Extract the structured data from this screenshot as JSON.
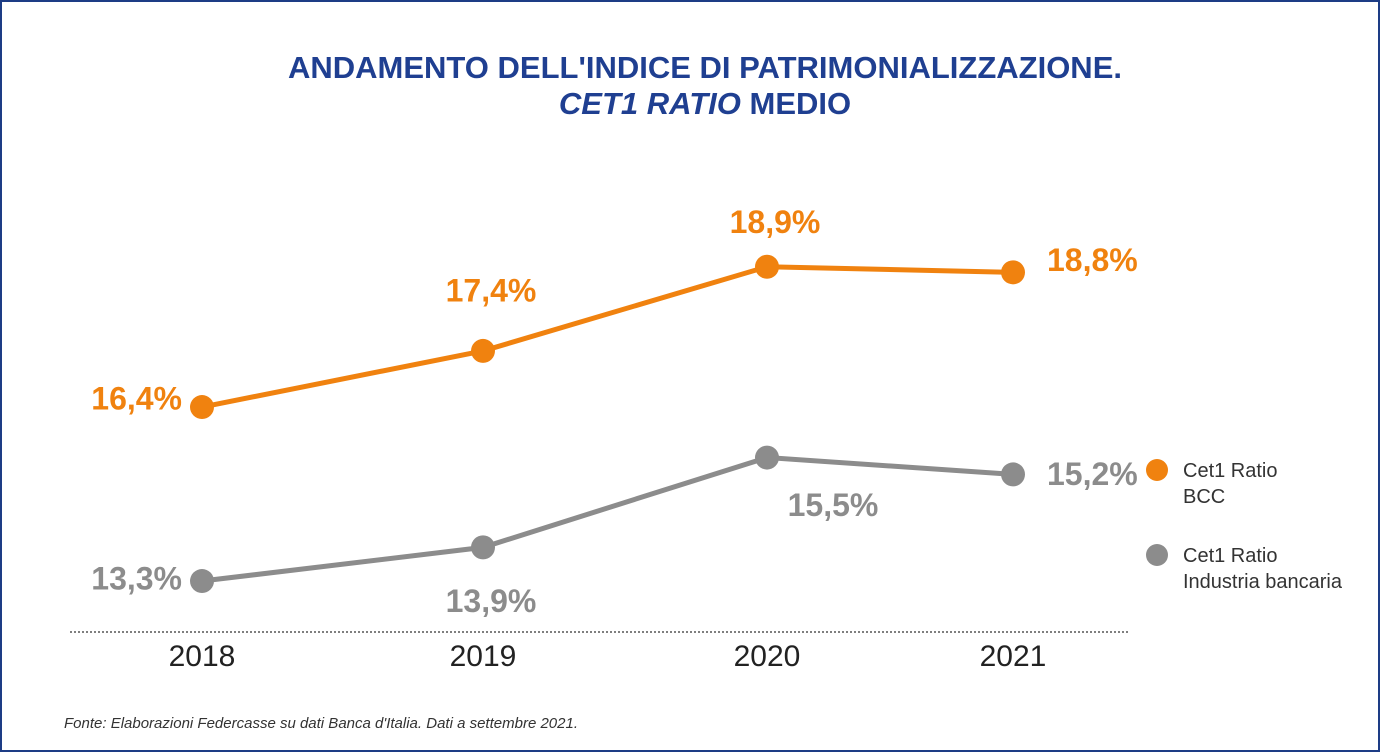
{
  "chart_data": {
    "type": "line",
    "title": [
      "ANDAMENTO DELL'INDICE DI PATRIMONIALIZZAZIONE.",
      "CET1 RATIO",
      "MEDIO"
    ],
    "categories": [
      "2018",
      "2019",
      "2020",
      "2021"
    ],
    "series": [
      {
        "name": "Cet1 Ratio BCC",
        "color": "#f0820f",
        "values": [
          16.4,
          17.4,
          18.9,
          18.8
        ],
        "value_labels": [
          "16,4%",
          "17,4%",
          "18,9%",
          "18,8%"
        ]
      },
      {
        "name": "Cet1 Ratio Industria bancaria",
        "color": "#8c8c8c",
        "values": [
          13.3,
          13.9,
          15.5,
          15.2
        ],
        "value_labels": [
          "13,3%",
          "13,9%",
          "15,5%",
          "15,2%"
        ]
      }
    ],
    "ylim": [
      12,
      20
    ],
    "legend": "right",
    "source": "Fonte: Elaborazioni Federcasse su dati Banca d'Italia. Dati a settembre 2021."
  }
}
